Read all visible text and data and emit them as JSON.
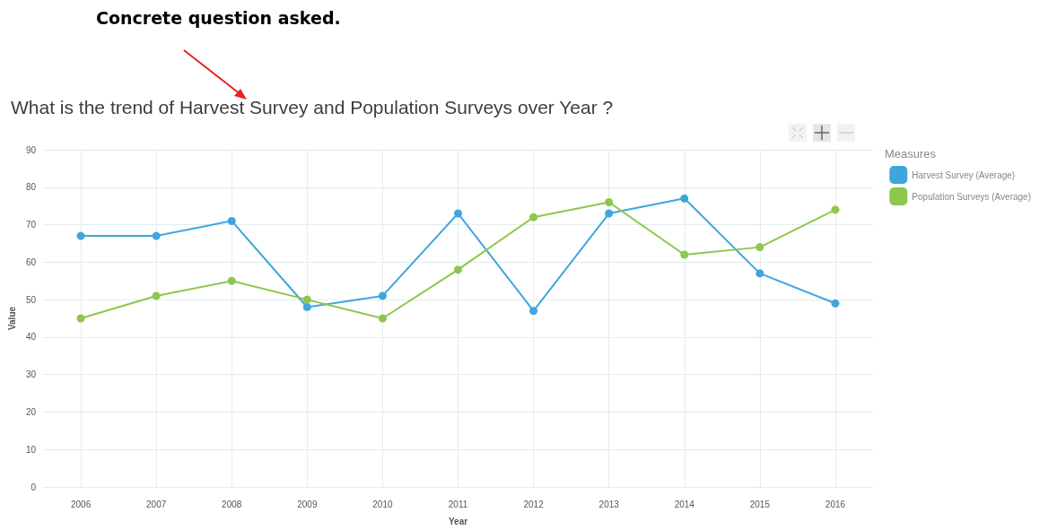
{
  "chart_data": {
    "type": "line",
    "title": "What is the trend of Harvest Survey and Population Surveys over Year ?",
    "annotations": [
      "Concrete question asked."
    ],
    "xlabel": "Year",
    "ylabel": "Value",
    "legend_title": "Measures",
    "x": [
      2006,
      2007,
      2008,
      2009,
      2010,
      2011,
      2012,
      2013,
      2014,
      2015,
      2016
    ],
    "xlim": [
      2005.5,
      2016.5
    ],
    "xticks": [
      2006,
      2007,
      2008,
      2009,
      2010,
      2011,
      2012,
      2013,
      2014,
      2015,
      2016
    ],
    "ylim": [
      0,
      90
    ],
    "yticks": [
      0,
      10,
      20,
      30,
      40,
      50,
      60,
      70,
      80,
      90
    ],
    "series": [
      {
        "name": "Harvest Survey (Average)",
        "color": "#3fa6dc",
        "values": [
          67,
          67,
          71,
          48,
          51,
          73,
          47,
          73,
          77,
          57,
          49
        ]
      },
      {
        "name": "Population Surveys (Average)",
        "color": "#8cc84b",
        "values": [
          45,
          51,
          55,
          50,
          45,
          58,
          72,
          76,
          62,
          64,
          74
        ]
      }
    ],
    "grid": true,
    "legend": "top right",
    "marker": "circle",
    "line_style": "solid"
  }
}
